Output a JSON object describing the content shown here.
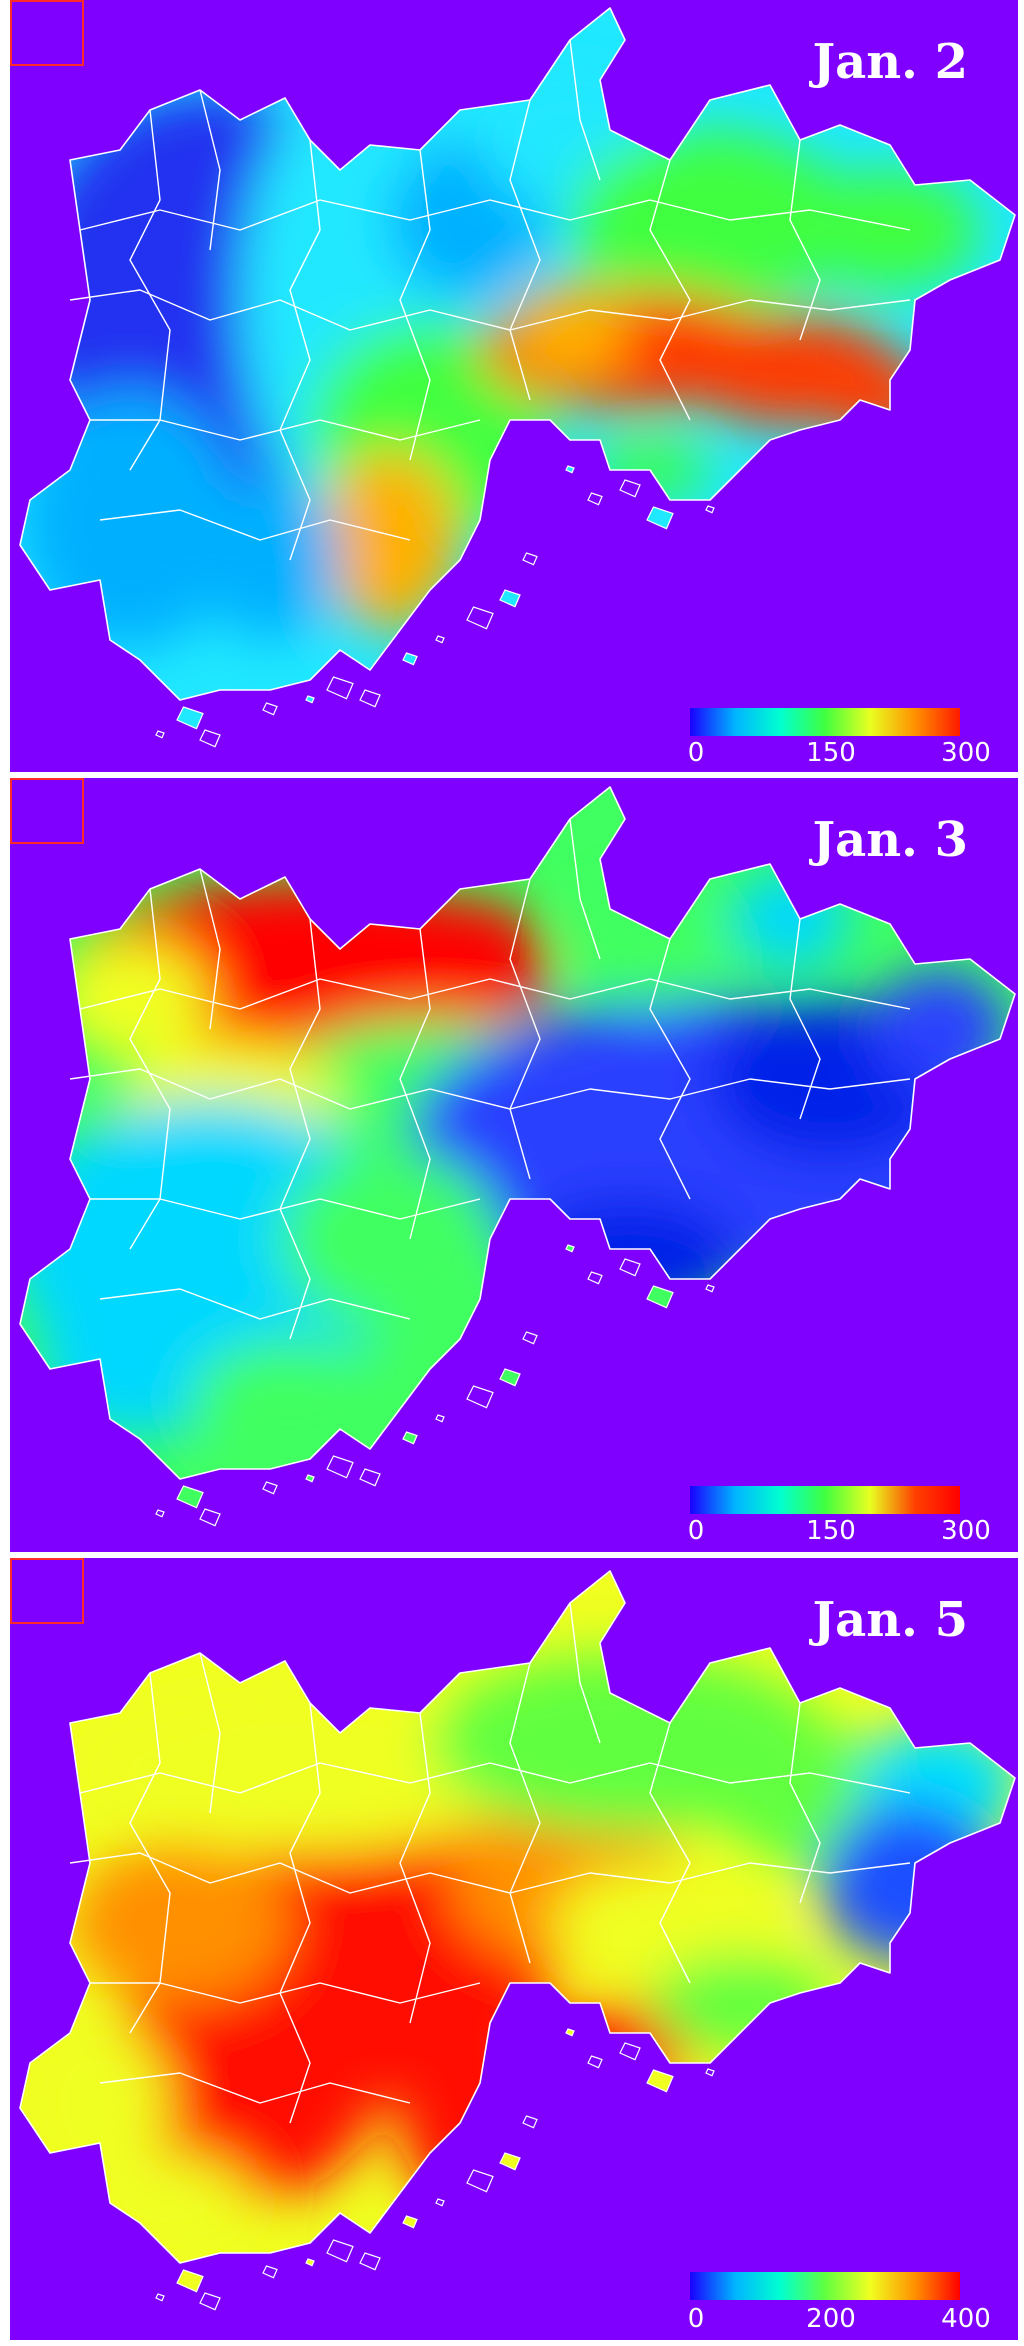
{
  "panels": [
    {
      "title": "Jan. 2",
      "colorbar": {
        "tick_labels": [
          "0",
          "150",
          "300"
        ],
        "stops": [
          "#1a00ff",
          "#00b4ff",
          "#00ffd0",
          "#40ff40",
          "#e8ff20",
          "#ff9000",
          "#ff1a00"
        ]
      },
      "region_colors": [
        "#2030f0",
        "#00b0ff",
        "#20e8ff",
        "#40ff40",
        "#ff3a00",
        "#ffb000"
      ]
    },
    {
      "title": "Jan. 3",
      "colorbar": {
        "tick_labels": [
          "0",
          "150",
          "300"
        ],
        "stops": [
          "#1a00ff",
          "#00b4ff",
          "#00ffd0",
          "#40ff40",
          "#e8ff20",
          "#ff4000",
          "#ff0000"
        ]
      },
      "region_colors": [
        "#ff0000",
        "#f0ff20",
        "#40ff60",
        "#00d8ff",
        "#2a40ff",
        "#0020e8"
      ]
    },
    {
      "title": "Jan. 5",
      "colorbar": {
        "tick_labels": [
          "0",
          "200",
          "400"
        ],
        "stops": [
          "#1a00ff",
          "#00b4ff",
          "#00ffd0",
          "#60ff40",
          "#f0ff20",
          "#ff9000",
          "#ff0000"
        ]
      },
      "region_colors": [
        "#ff1000",
        "#ff9000",
        "#f0ff20",
        "#60ff40",
        "#00e0ff",
        "#1a50ff"
      ]
    }
  ]
}
